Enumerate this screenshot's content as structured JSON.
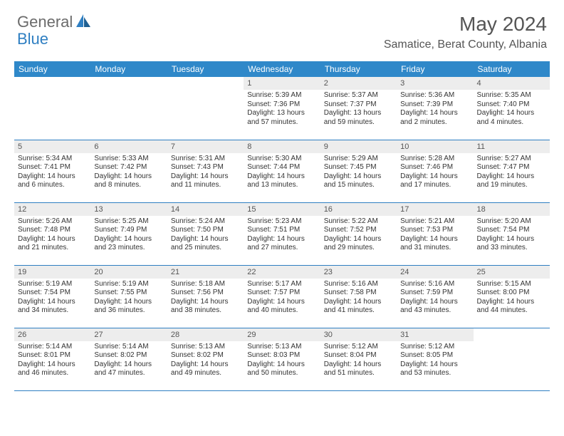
{
  "brand": {
    "part1": "General",
    "part2": "Blue"
  },
  "title": "May 2024",
  "location": "Samatice, Berat County, Albania",
  "colors": {
    "header_bg": "#2f88c9",
    "header_text": "#ffffff",
    "daynum_bg": "#ededed",
    "divider": "#2f7fc2",
    "brand_gray": "#6b6b6b",
    "brand_blue": "#2f7fc2",
    "title_color": "#555555",
    "body_text": "#333333",
    "page_bg": "#ffffff"
  },
  "weekdays": [
    "Sunday",
    "Monday",
    "Tuesday",
    "Wednesday",
    "Thursday",
    "Friday",
    "Saturday"
  ],
  "weeks": [
    [
      {
        "n": "",
        "sr": "",
        "ss": "",
        "dl": ""
      },
      {
        "n": "",
        "sr": "",
        "ss": "",
        "dl": ""
      },
      {
        "n": "",
        "sr": "",
        "ss": "",
        "dl": ""
      },
      {
        "n": "1",
        "sr": "Sunrise: 5:39 AM",
        "ss": "Sunset: 7:36 PM",
        "dl": "Daylight: 13 hours and 57 minutes."
      },
      {
        "n": "2",
        "sr": "Sunrise: 5:37 AM",
        "ss": "Sunset: 7:37 PM",
        "dl": "Daylight: 13 hours and 59 minutes."
      },
      {
        "n": "3",
        "sr": "Sunrise: 5:36 AM",
        "ss": "Sunset: 7:39 PM",
        "dl": "Daylight: 14 hours and 2 minutes."
      },
      {
        "n": "4",
        "sr": "Sunrise: 5:35 AM",
        "ss": "Sunset: 7:40 PM",
        "dl": "Daylight: 14 hours and 4 minutes."
      }
    ],
    [
      {
        "n": "5",
        "sr": "Sunrise: 5:34 AM",
        "ss": "Sunset: 7:41 PM",
        "dl": "Daylight: 14 hours and 6 minutes."
      },
      {
        "n": "6",
        "sr": "Sunrise: 5:33 AM",
        "ss": "Sunset: 7:42 PM",
        "dl": "Daylight: 14 hours and 8 minutes."
      },
      {
        "n": "7",
        "sr": "Sunrise: 5:31 AM",
        "ss": "Sunset: 7:43 PM",
        "dl": "Daylight: 14 hours and 11 minutes."
      },
      {
        "n": "8",
        "sr": "Sunrise: 5:30 AM",
        "ss": "Sunset: 7:44 PM",
        "dl": "Daylight: 14 hours and 13 minutes."
      },
      {
        "n": "9",
        "sr": "Sunrise: 5:29 AM",
        "ss": "Sunset: 7:45 PM",
        "dl": "Daylight: 14 hours and 15 minutes."
      },
      {
        "n": "10",
        "sr": "Sunrise: 5:28 AM",
        "ss": "Sunset: 7:46 PM",
        "dl": "Daylight: 14 hours and 17 minutes."
      },
      {
        "n": "11",
        "sr": "Sunrise: 5:27 AM",
        "ss": "Sunset: 7:47 PM",
        "dl": "Daylight: 14 hours and 19 minutes."
      }
    ],
    [
      {
        "n": "12",
        "sr": "Sunrise: 5:26 AM",
        "ss": "Sunset: 7:48 PM",
        "dl": "Daylight: 14 hours and 21 minutes."
      },
      {
        "n": "13",
        "sr": "Sunrise: 5:25 AM",
        "ss": "Sunset: 7:49 PM",
        "dl": "Daylight: 14 hours and 23 minutes."
      },
      {
        "n": "14",
        "sr": "Sunrise: 5:24 AM",
        "ss": "Sunset: 7:50 PM",
        "dl": "Daylight: 14 hours and 25 minutes."
      },
      {
        "n": "15",
        "sr": "Sunrise: 5:23 AM",
        "ss": "Sunset: 7:51 PM",
        "dl": "Daylight: 14 hours and 27 minutes."
      },
      {
        "n": "16",
        "sr": "Sunrise: 5:22 AM",
        "ss": "Sunset: 7:52 PM",
        "dl": "Daylight: 14 hours and 29 minutes."
      },
      {
        "n": "17",
        "sr": "Sunrise: 5:21 AM",
        "ss": "Sunset: 7:53 PM",
        "dl": "Daylight: 14 hours and 31 minutes."
      },
      {
        "n": "18",
        "sr": "Sunrise: 5:20 AM",
        "ss": "Sunset: 7:54 PM",
        "dl": "Daylight: 14 hours and 33 minutes."
      }
    ],
    [
      {
        "n": "19",
        "sr": "Sunrise: 5:19 AM",
        "ss": "Sunset: 7:54 PM",
        "dl": "Daylight: 14 hours and 34 minutes."
      },
      {
        "n": "20",
        "sr": "Sunrise: 5:19 AM",
        "ss": "Sunset: 7:55 PM",
        "dl": "Daylight: 14 hours and 36 minutes."
      },
      {
        "n": "21",
        "sr": "Sunrise: 5:18 AM",
        "ss": "Sunset: 7:56 PM",
        "dl": "Daylight: 14 hours and 38 minutes."
      },
      {
        "n": "22",
        "sr": "Sunrise: 5:17 AM",
        "ss": "Sunset: 7:57 PM",
        "dl": "Daylight: 14 hours and 40 minutes."
      },
      {
        "n": "23",
        "sr": "Sunrise: 5:16 AM",
        "ss": "Sunset: 7:58 PM",
        "dl": "Daylight: 14 hours and 41 minutes."
      },
      {
        "n": "24",
        "sr": "Sunrise: 5:16 AM",
        "ss": "Sunset: 7:59 PM",
        "dl": "Daylight: 14 hours and 43 minutes."
      },
      {
        "n": "25",
        "sr": "Sunrise: 5:15 AM",
        "ss": "Sunset: 8:00 PM",
        "dl": "Daylight: 14 hours and 44 minutes."
      }
    ],
    [
      {
        "n": "26",
        "sr": "Sunrise: 5:14 AM",
        "ss": "Sunset: 8:01 PM",
        "dl": "Daylight: 14 hours and 46 minutes."
      },
      {
        "n": "27",
        "sr": "Sunrise: 5:14 AM",
        "ss": "Sunset: 8:02 PM",
        "dl": "Daylight: 14 hours and 47 minutes."
      },
      {
        "n": "28",
        "sr": "Sunrise: 5:13 AM",
        "ss": "Sunset: 8:02 PM",
        "dl": "Daylight: 14 hours and 49 minutes."
      },
      {
        "n": "29",
        "sr": "Sunrise: 5:13 AM",
        "ss": "Sunset: 8:03 PM",
        "dl": "Daylight: 14 hours and 50 minutes."
      },
      {
        "n": "30",
        "sr": "Sunrise: 5:12 AM",
        "ss": "Sunset: 8:04 PM",
        "dl": "Daylight: 14 hours and 51 minutes."
      },
      {
        "n": "31",
        "sr": "Sunrise: 5:12 AM",
        "ss": "Sunset: 8:05 PM",
        "dl": "Daylight: 14 hours and 53 minutes."
      },
      {
        "n": "",
        "sr": "",
        "ss": "",
        "dl": ""
      }
    ]
  ]
}
